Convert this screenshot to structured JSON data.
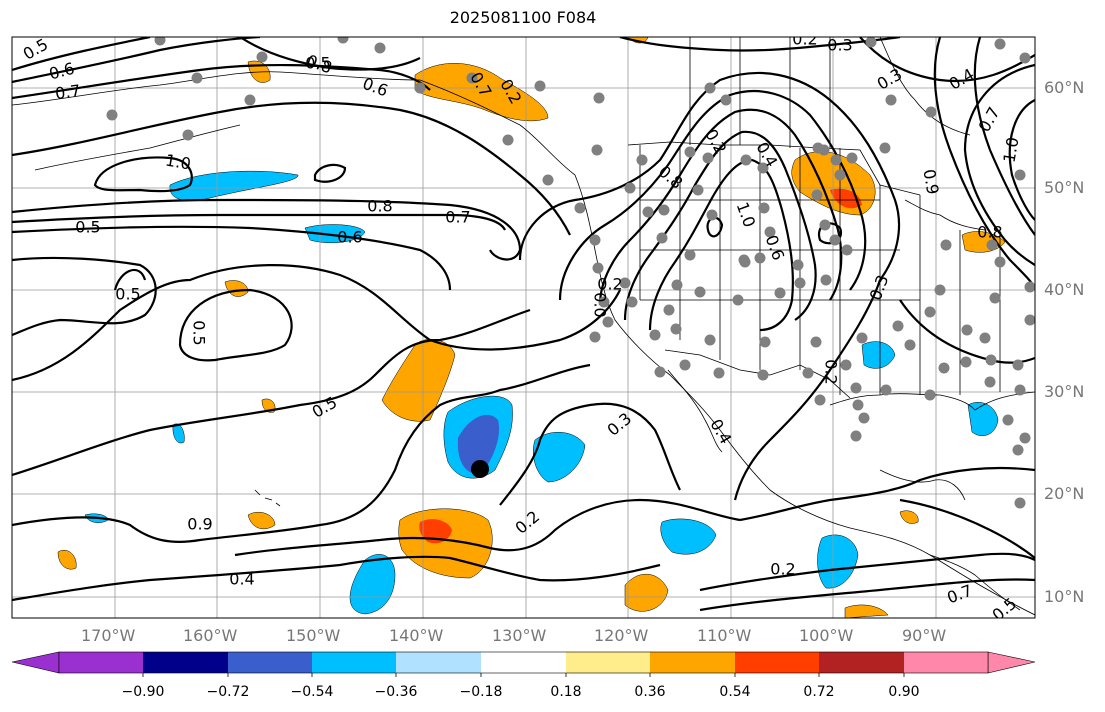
{
  "title": "2025081100 F084",
  "lon_labels": [
    "170°W",
    "160°W",
    "150°W",
    "140°W",
    "130°W",
    "120°W",
    "110°W",
    "100°W",
    "90°W"
  ],
  "lat_labels": [
    "60°N",
    "50°N",
    "40°N",
    "30°N",
    "20°N",
    "10°N"
  ],
  "contour_labels": [
    "0.5",
    "0.6",
    "0.7",
    "0.8",
    "0.5",
    "0.6",
    "0.7",
    "0.2",
    "0.3",
    "0.3",
    "0.4",
    "0.5",
    "1.0",
    "0.8",
    "0.7",
    "0.6",
    "0.5",
    "0.5",
    "0.5",
    "0.9",
    "0.4",
    "0.2",
    "0.3",
    "0.2",
    "0.2",
    "0.8",
    "0.4",
    "1.0",
    "0.6",
    "0.0",
    "0.3",
    "0.2",
    "0.9",
    "0.7",
    "0.8",
    "1.0",
    "0.7",
    "0.5",
    "0.4",
    "0.2",
    "0.2"
  ],
  "colorbar": {
    "colors": [
      "#9b30d0",
      "#00008b",
      "#3a5fcd",
      "#00bfff",
      "#b0e2ff",
      "#ffffff",
      "#ffec8b",
      "#ffa500",
      "#ff3e00",
      "#b22222",
      "#ff88aa"
    ],
    "tick_labels": [
      "−0.90",
      "−0.72",
      "−0.54",
      "−0.36",
      "−0.18",
      "0.18",
      "0.36",
      "0.54",
      "0.72",
      "0.90"
    ]
  },
  "colors": {
    "negative_fill": "#00bfff",
    "negative_core": "#3a5fcd",
    "positive_fill": "#ffa500",
    "positive_core": "#ff3e00",
    "contour": "#000000",
    "station": "#808080",
    "marker": "#000000",
    "grid": "#999999"
  }
}
